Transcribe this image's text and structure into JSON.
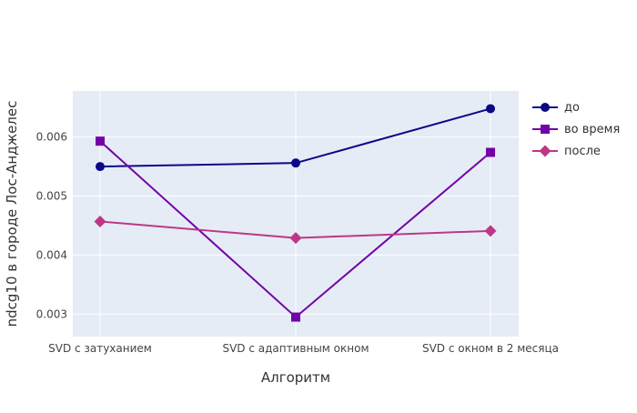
{
  "chart_data": {
    "type": "line",
    "title": "",
    "xlabel": "Алгоритм",
    "ylabel": "ndcg10 в городе Лос-Анджелес",
    "categories": [
      "SVD с затуханием",
      "SVD с адаптивным окном",
      "SVD с окном в 2 месяца"
    ],
    "ylim": [
      0.00262,
      0.00678
    ],
    "yticks": [
      0.003,
      0.004,
      0.005,
      0.006
    ],
    "ytick_labels": [
      "0.003",
      "0.004",
      "0.005",
      "0.006"
    ],
    "grid": true,
    "legend_position": "top-right",
    "plot_background": "#E5ECF6",
    "series": [
      {
        "name": "до",
        "values": [
          0.0055,
          0.00556,
          0.00648
        ],
        "color": "#0D0887",
        "marker": "circle"
      },
      {
        "name": "во время",
        "values": [
          0.00593,
          0.00295,
          0.00574
        ],
        "color": "#7201A8",
        "marker": "square"
      },
      {
        "name": "после",
        "values": [
          0.00457,
          0.00429,
          0.00441
        ],
        "color": "#BD3786",
        "marker": "diamond"
      }
    ]
  }
}
